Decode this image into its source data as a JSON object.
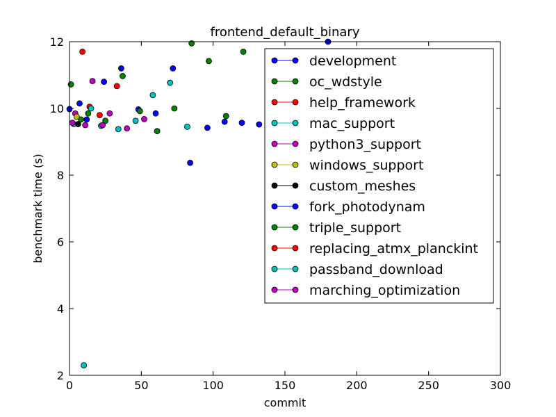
{
  "chart_data": {
    "type": "scatter",
    "title": "frontend_default_binary",
    "xlabel": "commit",
    "ylabel": "benchmark time (s)",
    "xlim": [
      0,
      300
    ],
    "ylim": [
      2,
      12
    ],
    "xticks": [
      0,
      50,
      100,
      150,
      200,
      250,
      300
    ],
    "yticks": [
      2,
      4,
      6,
      8,
      10,
      12
    ],
    "grid": false,
    "legend_position": "top-right",
    "series": [
      {
        "name": "development",
        "color": "#0000ff",
        "points": [
          [
            0,
            9.98
          ],
          [
            7,
            10.15
          ],
          [
            12,
            9.67
          ],
          [
            24,
            10.8
          ],
          [
            36,
            11.2
          ],
          [
            48,
            9.97
          ],
          [
            60,
            9.85
          ],
          [
            72,
            11.2
          ],
          [
            84,
            8.37
          ],
          [
            96,
            9.42
          ],
          [
            108,
            9.6
          ],
          [
            120,
            9.57
          ],
          [
            132,
            9.52
          ],
          [
            180,
            12.0
          ]
        ]
      },
      {
        "name": "oc_wdstyle",
        "color": "#008000",
        "points": [
          [
            1,
            10.72
          ],
          [
            8,
            9.67
          ],
          [
            13,
            9.85
          ],
          [
            25,
            9.63
          ],
          [
            37,
            10.97
          ],
          [
            49,
            9.92
          ],
          [
            61,
            9.32
          ],
          [
            73,
            10.0
          ],
          [
            85,
            11.95
          ],
          [
            97,
            11.42
          ],
          [
            109,
            9.77
          ],
          [
            121,
            11.7
          ]
        ]
      },
      {
        "name": "help_framework",
        "color": "#ff0000",
        "points": [
          [
            9,
            11.7
          ],
          [
            14,
            10.05
          ],
          [
            21,
            9.8
          ],
          [
            33,
            10.67
          ]
        ]
      },
      {
        "name": "mac_support",
        "color": "#00bfbf",
        "points": [
          [
            3,
            9.53
          ],
          [
            10,
            2.3
          ],
          [
            15,
            10.0
          ],
          [
            22,
            9.48
          ],
          [
            34,
            9.38
          ],
          [
            46,
            9.63
          ],
          [
            58,
            10.4
          ],
          [
            70,
            10.77
          ],
          [
            82,
            9.45
          ]
        ]
      },
      {
        "name": "python3_support",
        "color": "#bf00bf",
        "points": [
          [
            2,
            9.57
          ],
          [
            4,
            9.85
          ],
          [
            11,
            9.5
          ],
          [
            16,
            10.82
          ],
          [
            23,
            9.5
          ],
          [
            28,
            9.85
          ],
          [
            40,
            9.4
          ],
          [
            52,
            9.68
          ]
        ]
      },
      {
        "name": "windows_support",
        "color": "#bfbf00",
        "points": [
          [
            5,
            9.75
          ]
        ]
      },
      {
        "name": "custom_meshes",
        "color": "#000000",
        "points": [
          [
            6,
            9.53
          ]
        ]
      },
      {
        "name": "fork_photodynam",
        "color": "#0000ff",
        "points": []
      },
      {
        "name": "triple_support",
        "color": "#008000",
        "points": []
      },
      {
        "name": "replacing_atmx_planckint",
        "color": "#ff0000",
        "points": []
      },
      {
        "name": "passband_download",
        "color": "#00bfbf",
        "points": []
      },
      {
        "name": "marching_optimization",
        "color": "#bf00bf",
        "points": []
      }
    ]
  }
}
